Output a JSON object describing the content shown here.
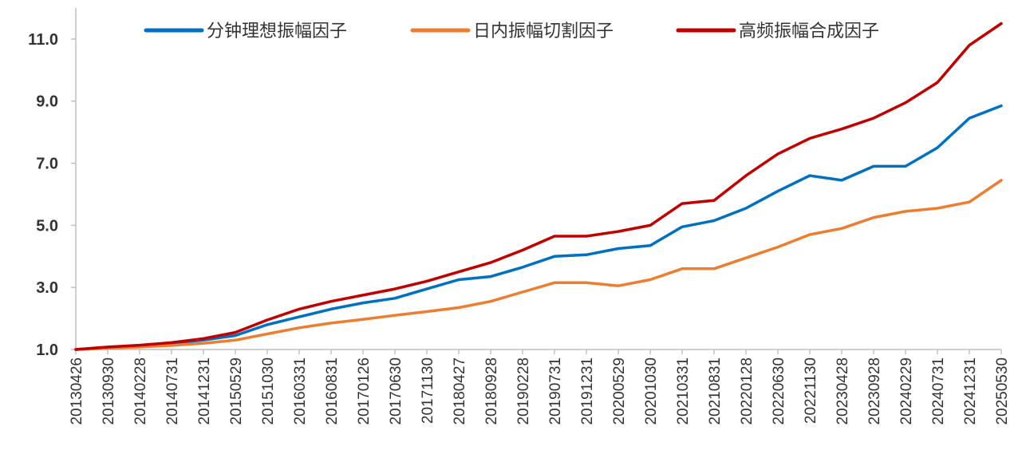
{
  "chart_data": {
    "type": "line",
    "title": "",
    "xlabel": "",
    "ylabel": "",
    "ylim": [
      1.0,
      12.0
    ],
    "yticks": [
      "1.0",
      "3.0",
      "5.0",
      "7.0",
      "9.0",
      "11.0"
    ],
    "grid": false,
    "legend_position": "top",
    "x": [
      "20130426",
      "20130930",
      "20140228",
      "20140731",
      "20141231",
      "20150529",
      "20151030",
      "20160331",
      "20160831",
      "20170126",
      "20170630",
      "20171130",
      "20180427",
      "20180928",
      "20190228",
      "20190731",
      "20191231",
      "20200529",
      "20201030",
      "20210331",
      "20210831",
      "20220128",
      "20220630",
      "20221130",
      "20230428",
      "20230928",
      "20240229",
      "20240731",
      "20241231",
      "20250530"
    ],
    "series": [
      {
        "name": "分钟理想振幅因子",
        "color": "#0070C0",
        "values": [
          1.0,
          1.07,
          1.12,
          1.2,
          1.3,
          1.45,
          1.8,
          2.05,
          2.3,
          2.5,
          2.65,
          2.95,
          3.25,
          3.35,
          3.65,
          4.0,
          4.05,
          4.25,
          4.35,
          4.95,
          5.15,
          5.55,
          6.1,
          6.6,
          6.45,
          6.9,
          6.9,
          7.5,
          8.45,
          8.85
        ]
      },
      {
        "name": "日内振幅切割因子",
        "color": "#ED7D31",
        "values": [
          1.0,
          1.04,
          1.08,
          1.13,
          1.2,
          1.3,
          1.5,
          1.7,
          1.85,
          1.97,
          2.1,
          2.22,
          2.35,
          2.55,
          2.85,
          3.15,
          3.15,
          3.05,
          3.25,
          3.6,
          3.6,
          3.95,
          4.3,
          4.7,
          4.9,
          5.25,
          5.45,
          5.55,
          5.75,
          6.45
        ]
      },
      {
        "name": "高频振幅合成因子",
        "color": "#C00000",
        "values": [
          1.0,
          1.08,
          1.14,
          1.22,
          1.35,
          1.55,
          1.95,
          2.3,
          2.55,
          2.75,
          2.95,
          3.2,
          3.5,
          3.8,
          4.2,
          4.65,
          4.65,
          4.8,
          5.0,
          5.7,
          5.8,
          6.6,
          7.3,
          7.8,
          8.1,
          8.45,
          8.95,
          9.6,
          10.8,
          11.5
        ]
      }
    ]
  }
}
